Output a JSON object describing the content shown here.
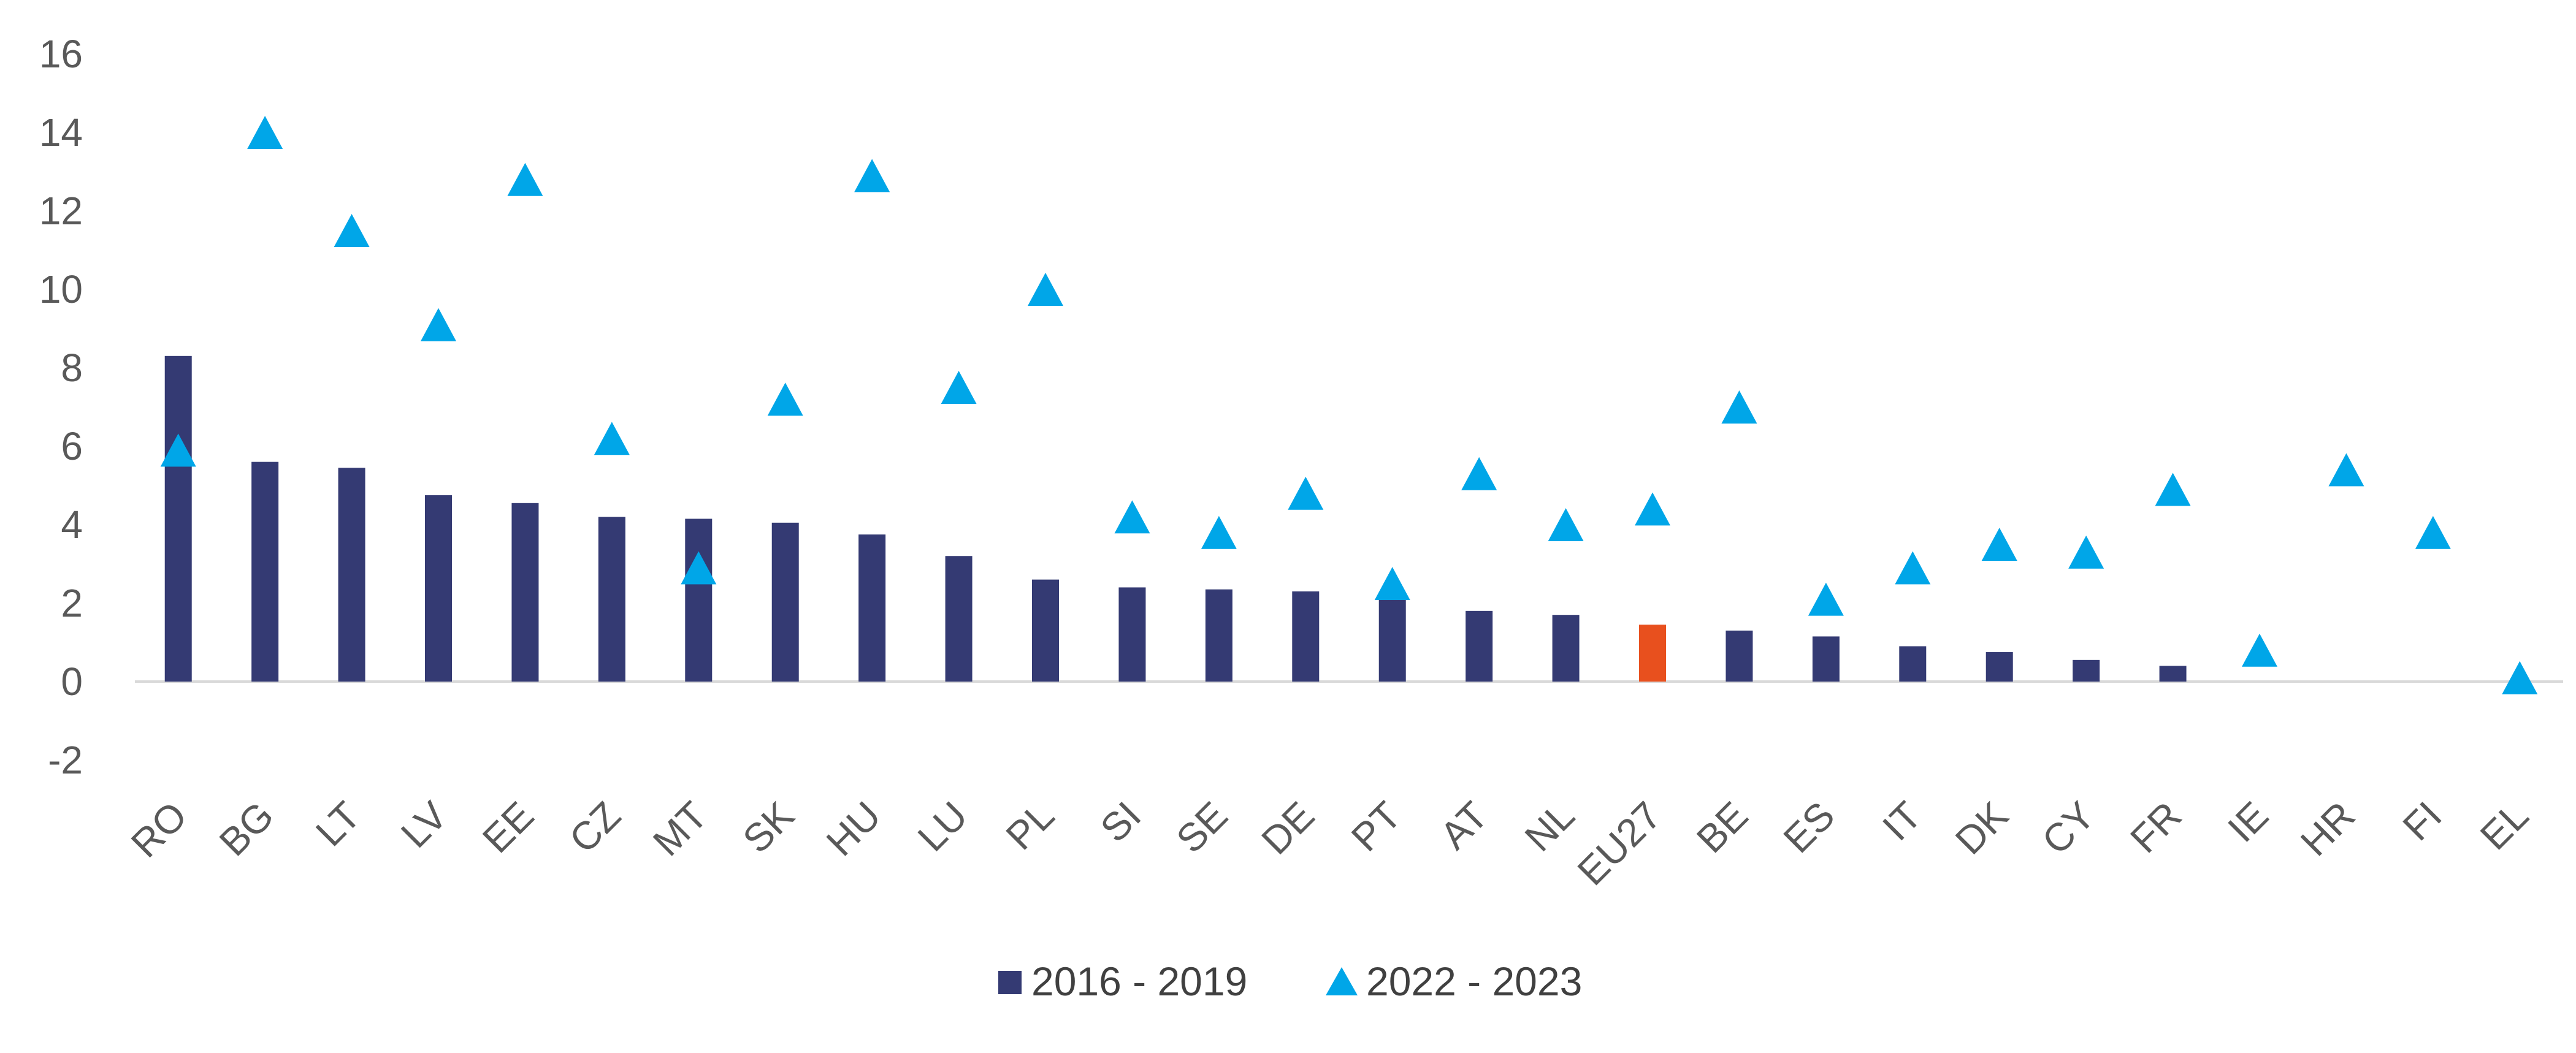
{
  "chart_data": {
    "type": "bar",
    "title": "",
    "xlabel": "",
    "ylabel": "",
    "ylim": [
      -2,
      16
    ],
    "yticks": [
      -2,
      0,
      2,
      4,
      6,
      8,
      10,
      12,
      14,
      16
    ],
    "grid": false,
    "legend_position": "bottom",
    "categories": [
      "RO",
      "BG",
      "LT",
      "LV",
      "EE",
      "CZ",
      "MT",
      "SK",
      "HU",
      "LU",
      "PL",
      "SI",
      "SE",
      "DE",
      "PT",
      "AT",
      "NL",
      "EU27",
      "BE",
      "ES",
      "IT",
      "DK",
      "CY",
      "FR",
      "IE",
      "HR",
      "FI",
      "EL"
    ],
    "series": [
      {
        "name": "2016 - 2019",
        "mark": "bar",
        "color": "#343a73",
        "highlight": {
          "category": "EU27",
          "color": "#e8501e"
        },
        "values": [
          8.3,
          5.6,
          5.45,
          4.75,
          4.55,
          4.2,
          4.15,
          4.05,
          3.75,
          3.2,
          2.6,
          2.4,
          2.35,
          2.3,
          2.15,
          1.8,
          1.7,
          1.45,
          1.3,
          1.15,
          0.9,
          0.75,
          0.55,
          0.4,
          null,
          null,
          null,
          null
        ]
      },
      {
        "name": "2022 - 2023",
        "mark": "triangle",
        "color": "#00a6e8",
        "values": [
          5.9,
          14.0,
          11.5,
          9.1,
          12.8,
          6.2,
          2.9,
          7.2,
          12.9,
          7.5,
          10.0,
          4.2,
          3.8,
          4.8,
          2.5,
          5.3,
          4.0,
          4.4,
          7.0,
          2.1,
          2.9,
          3.5,
          3.3,
          4.9,
          0.8,
          5.4,
          3.8,
          0.1
        ]
      }
    ]
  }
}
